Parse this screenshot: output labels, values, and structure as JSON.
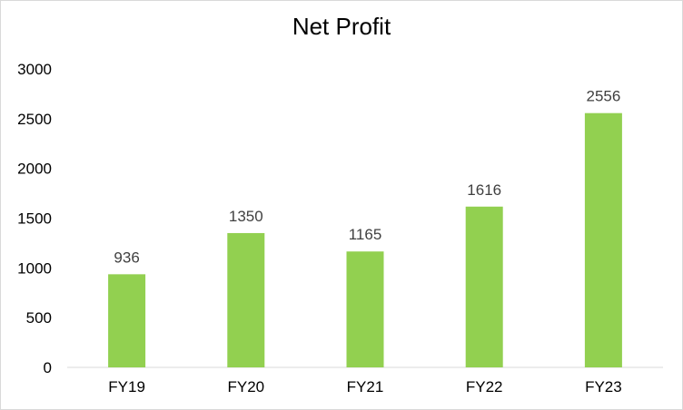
{
  "chart_data": {
    "type": "bar",
    "title": "Net Profit",
    "categories": [
      "FY19",
      "FY20",
      "FY21",
      "FY22",
      "FY23"
    ],
    "values": [
      936,
      1350,
      1165,
      1616,
      2556
    ],
    "data_labels": [
      "936",
      "1350",
      "1165",
      "1616",
      "2556"
    ],
    "xlabel": "",
    "ylabel": "",
    "ylim": [
      0,
      3000
    ],
    "yticks": [
      0,
      500,
      1000,
      1500,
      2000,
      2500,
      3000
    ],
    "grid": false,
    "legend": "none",
    "bar_color": "#92d050"
  }
}
